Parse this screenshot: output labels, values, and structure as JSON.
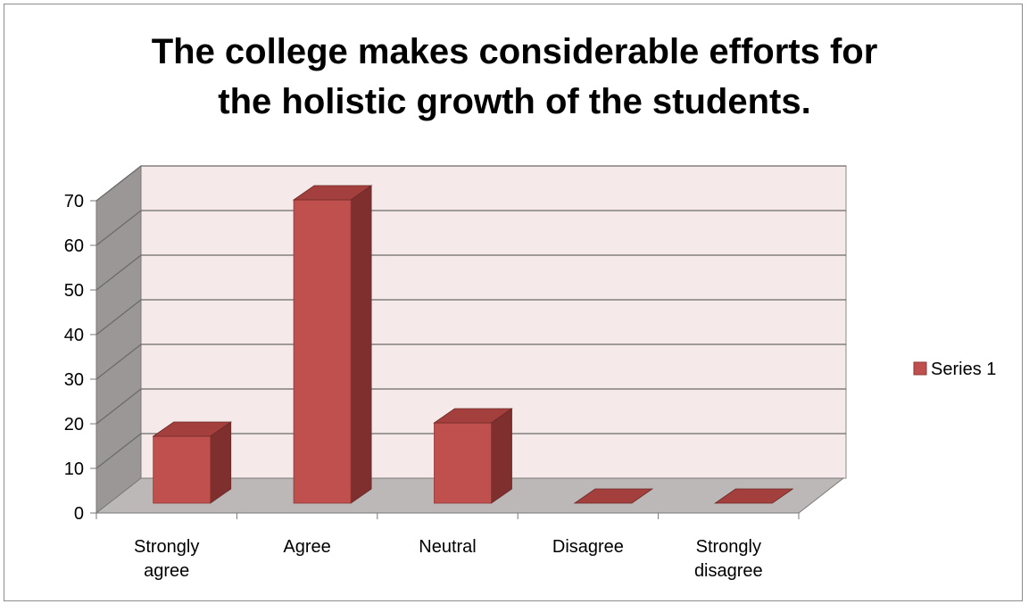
{
  "chart_data": {
    "type": "bar",
    "title_lines": [
      "The college makes considerable efforts for",
      "the holistic growth of the students."
    ],
    "categories": [
      [
        "Strongly",
        "agree"
      ],
      [
        "Agree"
      ],
      [
        "Neutral"
      ],
      [
        "Disagree"
      ],
      [
        "Strongly",
        "disagree"
      ]
    ],
    "series": [
      {
        "name": "Series 1",
        "values": [
          15,
          68,
          18,
          0,
          0
        ]
      }
    ],
    "ylim": [
      0,
      70
    ],
    "yticks": [
      0,
      10,
      20,
      30,
      40,
      50,
      60,
      70
    ],
    "legend_position": "right",
    "grid": true,
    "colors": {
      "bar_front": "#c0504d",
      "bar_top": "#a3403d",
      "bar_side": "#7f302e",
      "back_wall": "#f5e9e9",
      "side_wall": "#9c9797",
      "floor": "#bdb8b8",
      "gridline": "#6b6b6b"
    }
  }
}
